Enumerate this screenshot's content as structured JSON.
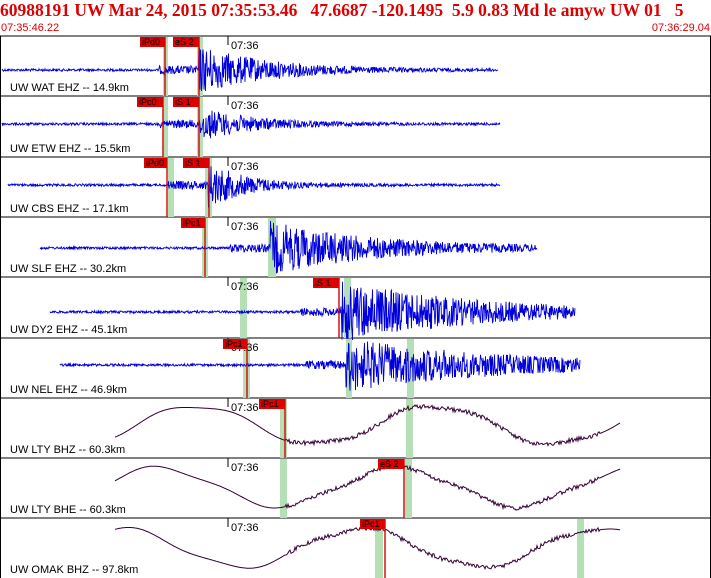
{
  "header": {
    "event_id": "60988191",
    "network": "UW",
    "date": "Mar 24, 2015",
    "time": "07:35:53.46",
    "lat": "47.6687",
    "lon": "-120.1495",
    "depth": "5.9",
    "mag": "0.83 Md",
    "type": "le",
    "author": "amyw",
    "network2": "UW",
    "version": "01",
    "extra": "5"
  },
  "time_axis": {
    "start_label": "07:35:46.22",
    "end_label": "07:36:29.04",
    "tick_label": "07:36"
  },
  "colors": {
    "header": "#dd0000",
    "trace_short": "#0000dd",
    "trace_long": "#330033",
    "pick": "#dd0000",
    "predicted_window": "#b5e0b5"
  },
  "traces": [
    {
      "label": "UW WAT EHZ -- 14.9km",
      "channel": "short",
      "picks": [
        "iPd0",
        "eS 2"
      ]
    },
    {
      "label": "UW ETW EHZ -- 15.5km",
      "channel": "short",
      "picks": [
        "iPc0",
        "iS 1"
      ]
    },
    {
      "label": "UW CBS EHZ -- 17.1km",
      "channel": "short",
      "picks": [
        "iPd0",
        "iS 1"
      ]
    },
    {
      "label": "UW SLF EHZ -- 30.2km",
      "channel": "short",
      "picks": [
        "iPc1"
      ]
    },
    {
      "label": "UW DY2 EHZ -- 45.1km",
      "channel": "short",
      "picks": [
        "iS 1"
      ]
    },
    {
      "label": "UW NEL EHZ -- 46.9km",
      "channel": "short",
      "picks": [
        "iPc1"
      ]
    },
    {
      "label": "UW LTY BHZ -- 60.3km",
      "channel": "long",
      "picks": [
        "iPc1"
      ]
    },
    {
      "label": "UW LTY BHE -- 60.3km",
      "channel": "long",
      "picks": [
        "eS 2"
      ]
    },
    {
      "label": "UW OMAK BHZ -- 97.8km",
      "channel": "long",
      "picks": [
        "iPc1"
      ]
    }
  ]
}
